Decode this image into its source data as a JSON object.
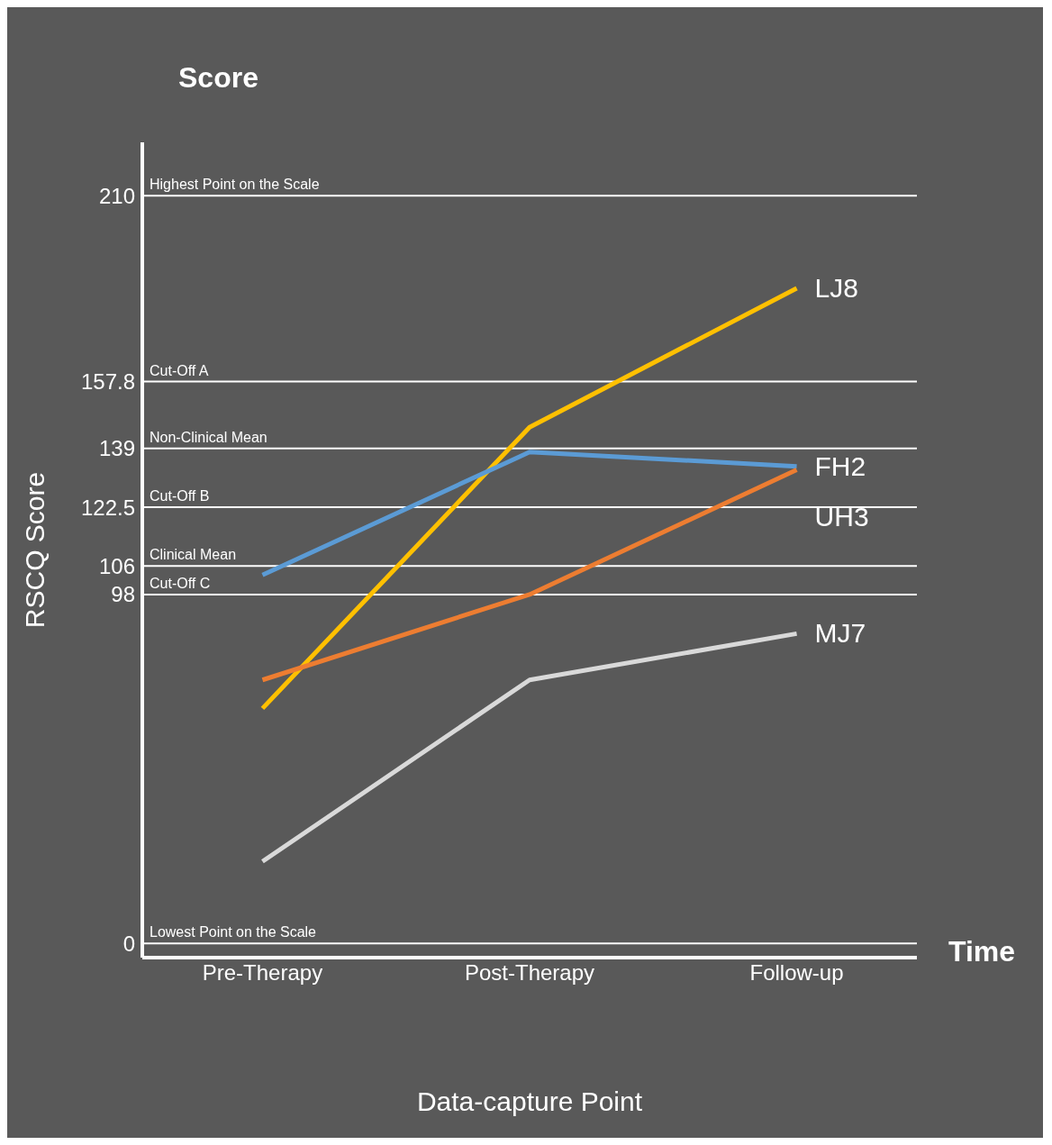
{
  "chart_data": {
    "type": "line",
    "xlabel": "Data-capture Point",
    "ylabel": "RSCQ Score",
    "annotations": [
      "Score",
      "Time"
    ],
    "categories": [
      "Pre-Therapy",
      "Post-Therapy",
      "Follow-up"
    ],
    "series": [
      {
        "name": "LJ8",
        "color": "#ffc000",
        "values": [
          66,
          145,
          184
        ]
      },
      {
        "name": "FH2",
        "color": "#5b9bd5",
        "values": [
          103.5,
          138,
          134
        ]
      },
      {
        "name": "UH3",
        "color": "#ed7d31",
        "values": [
          74,
          98,
          133
        ]
      },
      {
        "name": "MJ7",
        "color": "#d9d9d9",
        "values": [
          23,
          74,
          87
        ]
      }
    ],
    "ylim": [
      -4,
      225
    ],
    "yticks": [
      0,
      98,
      106,
      122.5,
      139,
      157.8,
      210
    ],
    "ref_lines": [
      {
        "axis": "y",
        "value": 0,
        "label": "Lowest Point on the Scale"
      },
      {
        "axis": "y",
        "value": 98,
        "label": "Cut-Off C"
      },
      {
        "axis": "y",
        "value": 106,
        "label": "Clinical Mean"
      },
      {
        "axis": "y",
        "value": 122.5,
        "label": "Cut-Off B"
      },
      {
        "axis": "y",
        "value": 139,
        "label": "Non-Clinical Mean"
      },
      {
        "axis": "y",
        "value": 157.8,
        "label": "Cut-Off A"
      },
      {
        "axis": "y",
        "value": 210,
        "label": "Highest Point on the Scale"
      }
    ],
    "legend": false,
    "marker": "none",
    "line_style": "solid"
  }
}
